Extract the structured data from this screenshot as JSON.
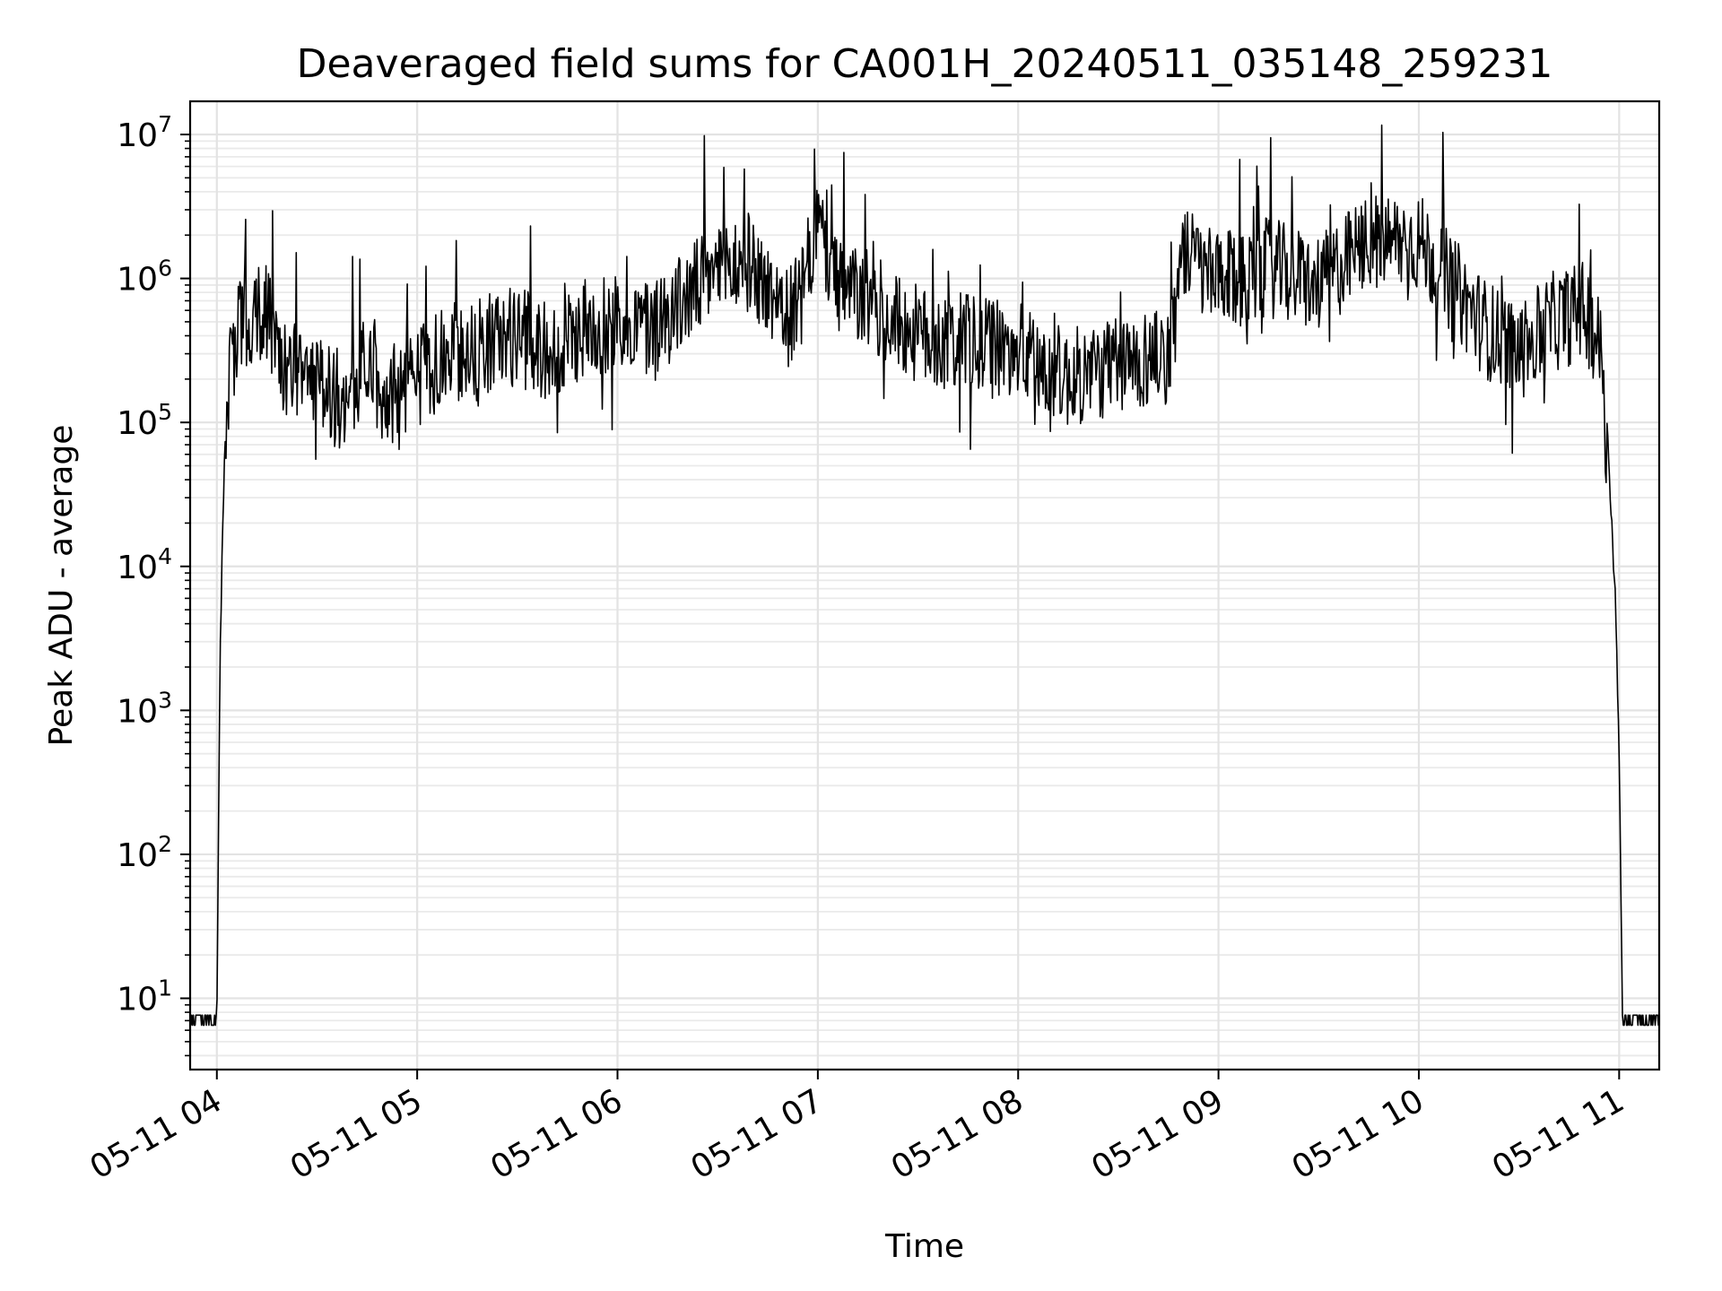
{
  "chart_data": {
    "type": "line",
    "title": "Deaveraged field sums for CA001H_20240511_035148_259231",
    "xlabel": "Time",
    "ylabel": "Peak ADU - average",
    "yscale": "log",
    "ylim": [
      3.2,
      17000000
    ],
    "xlim": [
      "2024-05-11 03:52",
      "2024-05-11 11:12"
    ],
    "grid": true,
    "xtick_labels": [
      "05-11 04",
      "05-11 05",
      "05-11 06",
      "05-11 07",
      "05-11 08",
      "05-11 09",
      "05-11 10",
      "05-11 11"
    ],
    "xticks": [
      "2024-05-11 04:00",
      "2024-05-11 05:00",
      "2024-05-11 06:00",
      "2024-05-11 07:00",
      "2024-05-11 08:00",
      "2024-05-11 09:00",
      "2024-05-11 10:00",
      "2024-05-11 11:00"
    ],
    "ytick_labels": [
      {
        "base": "10",
        "exp": "1",
        "value": 10
      },
      {
        "base": "10",
        "exp": "2",
        "value": 100
      },
      {
        "base": "10",
        "exp": "3",
        "value": 1000
      },
      {
        "base": "10",
        "exp": "4",
        "value": 10000
      },
      {
        "base": "10",
        "exp": "5",
        "value": 100000
      },
      {
        "base": "10",
        "exp": "6",
        "value": 1000000
      },
      {
        "base": "10",
        "exp": "7",
        "value": 10000000
      }
    ],
    "line_color": "#000000",
    "series": [
      {
        "x": [
          "2024-05-11 03:52",
          "2024-05-11 04:00",
          "2024-05-11 04:01",
          "2024-05-11 04:02",
          "2024-05-11 04:03",
          "2024-05-11 04:04",
          "2024-05-11 04:06",
          "2024-05-11 04:08",
          "2024-05-11 04:10",
          "2024-05-11 04:15",
          "2024-05-11 04:20",
          "2024-05-11 04:25",
          "2024-05-11 04:27",
          "2024-05-11 04:30",
          "2024-05-11 04:35",
          "2024-05-11 04:40",
          "2024-05-11 04:45",
          "2024-05-11 04:50",
          "2024-05-11 05:00",
          "2024-05-11 05:10",
          "2024-05-11 05:20",
          "2024-05-11 05:30",
          "2024-05-11 05:40",
          "2024-05-11 05:50",
          "2024-05-11 06:00",
          "2024-05-11 06:10",
          "2024-05-11 06:20",
          "2024-05-11 06:30",
          "2024-05-11 06:40",
          "2024-05-11 06:45",
          "2024-05-11 06:50",
          "2024-05-11 06:55",
          "2024-05-11 07:00",
          "2024-05-11 07:05",
          "2024-05-11 07:15",
          "2024-05-11 07:30",
          "2024-05-11 07:45",
          "2024-05-11 08:00",
          "2024-05-11 08:15",
          "2024-05-11 08:30",
          "2024-05-11 08:45",
          "2024-05-11 08:50",
          "2024-05-11 09:00",
          "2024-05-11 09:15",
          "2024-05-11 09:30",
          "2024-05-11 09:45",
          "2024-05-11 10:00",
          "2024-05-11 10:10",
          "2024-05-11 10:20",
          "2024-05-11 10:30",
          "2024-05-11 10:40",
          "2024-05-11 10:50",
          "2024-05-11 10:55",
          "2024-05-11 10:57",
          "2024-05-11 10:59",
          "2024-05-11 11:00",
          "2024-05-11 11:01",
          "2024-05-11 11:12"
        ],
        "values": [
          6.5,
          6.5,
          3000,
          30000,
          150000,
          250000,
          400000,
          550000,
          550000,
          600000,
          250000,
          200000,
          300000,
          200000,
          150000,
          150000,
          300000,
          150000,
          200000,
          300000,
          350000,
          400000,
          300000,
          450000,
          500000,
          450000,
          700000,
          1200000,
          1300000,
          800000,
          500000,
          700000,
          2500000,
          900000,
          700000,
          400000,
          350000,
          300000,
          200000,
          250000,
          300000,
          1500000,
          900000,
          1200000,
          900000,
          1800000,
          1800000,
          900000,
          450000,
          300000,
          500000,
          600000,
          300000,
          50000,
          5000,
          500,
          6.5,
          6.5
        ]
      }
    ]
  }
}
